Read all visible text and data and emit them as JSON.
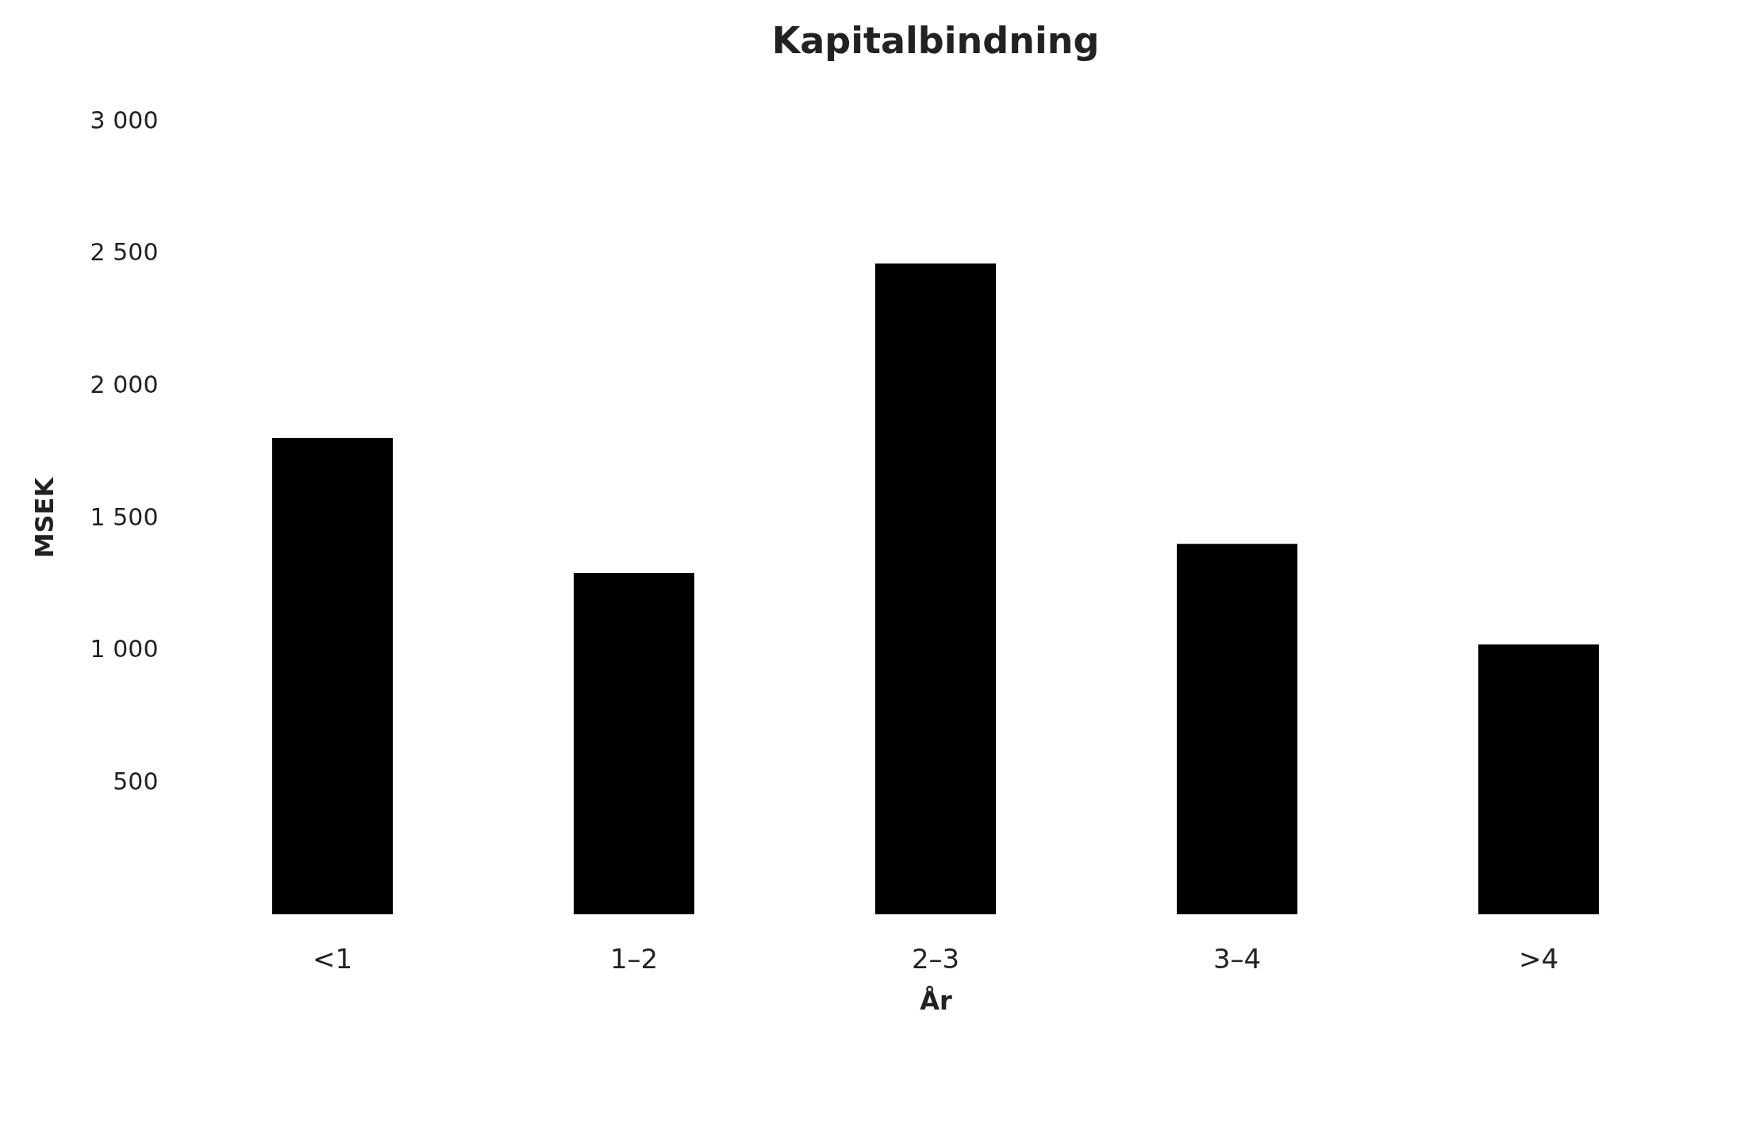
{
  "chart_data": {
    "type": "bar",
    "title": "Kapitalbindning",
    "xlabel": "År",
    "ylabel": "MSEK",
    "categories": [
      "<1",
      "1–2",
      "2–3",
      "3–4",
      ">4"
    ],
    "values": [
      1800,
      1290,
      2460,
      1400,
      1020
    ],
    "color": "#000000",
    "ylim": [
      0,
      3000
    ],
    "yticks": [
      {
        "value": 500,
        "label": "500"
      },
      {
        "value": 1000,
        "label": "1 000"
      },
      {
        "value": 1500,
        "label": "1 500"
      },
      {
        "value": 2000,
        "label": "2 000"
      },
      {
        "value": 2500,
        "label": "2 500"
      },
      {
        "value": 3000,
        "label": "3 000"
      }
    ],
    "grid": false
  }
}
